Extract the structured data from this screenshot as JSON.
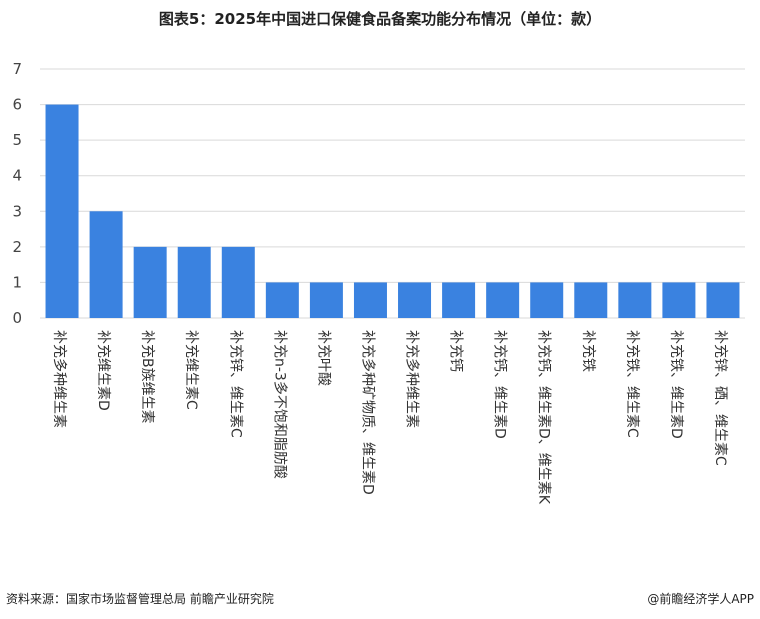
{
  "title": "图表5：2025年中国进口保健食品备案功能分布情况（单位：款）",
  "footer": {
    "source": "资料来源：国家市场监督管理总局  前瞻产业研究院",
    "brand": "@前瞻经济学人APP"
  },
  "colors": {
    "bar": "#3a82e0",
    "grid": "#d9d9d9"
  },
  "chart_data": {
    "type": "bar",
    "title": "图表5：2025年中国进口保健食品备案功能分布情况（单位：款）",
    "categories": [
      "补充多种维生素",
      "补充维生素D",
      "补充B族维生素",
      "补充维生素C",
      "补充锌、维生素C",
      "补充n-3多不饱和脂肪酸",
      "补充叶酸",
      "补充多种矿物质、维生素D",
      "补充多种维生素",
      "补充钙",
      "补充钙、维生素D",
      "补充钙、维生素D、维生素K",
      "补充铁",
      "补充铁、维生素C",
      "补充铁、维生素D",
      "补充锌、硒、维生素C"
    ],
    "values": [
      6,
      3,
      2,
      2,
      2,
      1,
      1,
      1,
      1,
      1,
      1,
      1,
      1,
      1,
      1,
      1
    ],
    "yticks": [
      0,
      1,
      2,
      3,
      4,
      5,
      6,
      7
    ],
    "ylim": [
      0,
      7
    ],
    "grid": true,
    "xlabel": "",
    "ylabel": ""
  }
}
